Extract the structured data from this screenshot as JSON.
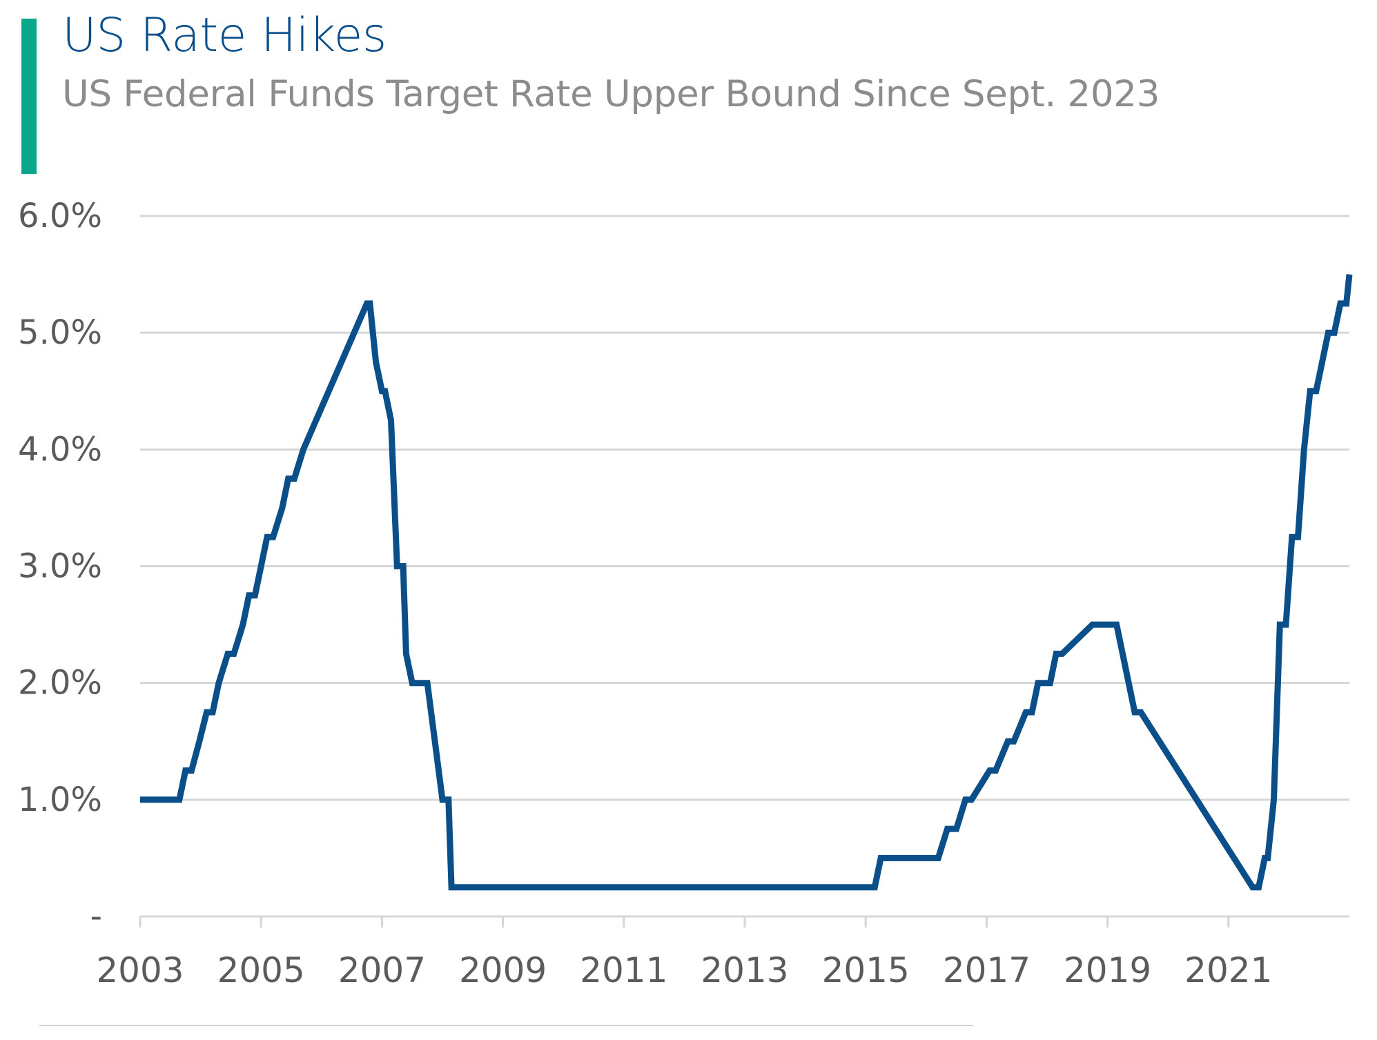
{
  "header": {
    "title": "US Rate Hikes",
    "subtitle": "US Federal Funds Target Rate Upper Bound Since Sept. 2023"
  },
  "colors": {
    "accent": "#0aa88a",
    "title": "#0b4f8a",
    "line": "#0b4f8a",
    "grid": "#d6d6d6",
    "tick_text": "#5b5b5b"
  },
  "chart_data": {
    "type": "line",
    "title": "US Rate Hikes",
    "subtitle": "US Federal Funds Target Rate Upper Bound Since Sept. 2023",
    "xlabel": "",
    "ylabel": "",
    "x_tick_labels": [
      "2003",
      "2005",
      "2007",
      "2009",
      "2011",
      "2013",
      "2015",
      "2017",
      "2019",
      "2021"
    ],
    "y_tick_labels": [
      "-",
      "1.0%",
      "2.0%",
      "3.0%",
      "4.0%",
      "5.0%",
      "6.0%"
    ],
    "xlim": [
      2003.0,
      2023.0
    ],
    "ylim": [
      0,
      6
    ],
    "grid": true,
    "legend": "none",
    "series": [
      {
        "values_unit": "percent",
        "x": [
          2003.0,
          2003.65,
          2003.75,
          2003.85,
          2003.98,
          2004.1,
          2004.2,
          2004.3,
          2004.45,
          2004.55,
          2004.7,
          2004.8,
          2004.9,
          2005.0,
          2005.1,
          2005.2,
          2005.35,
          2005.45,
          2005.55,
          2005.7,
          2006.75,
          2006.8,
          2006.9,
          2007.0,
          2007.05,
          2007.15,
          2007.25,
          2007.35,
          2007.4,
          2007.5,
          2007.55,
          2007.65,
          2007.75,
          2008.0,
          2008.1,
          2008.15,
          2008.25,
          2015.15,
          2015.25,
          2016.1,
          2016.2,
          2016.35,
          2016.5,
          2016.65,
          2016.75,
          2017.05,
          2017.15,
          2017.35,
          2017.45,
          2017.65,
          2017.75,
          2017.85,
          2018.05,
          2018.15,
          2018.25,
          2018.75,
          2018.85,
          2019.15,
          2019.45,
          2019.55,
          2021.4,
          2021.5,
          2021.6,
          2021.65,
          2021.75,
          2021.85,
          2021.95,
          2022.05,
          2022.15,
          2022.25,
          2022.35,
          2022.45,
          2022.55,
          2022.65,
          2022.75,
          2022.85,
          2022.95,
          2023.0
        ],
        "values": [
          1.0,
          1.0,
          1.25,
          1.25,
          1.5,
          1.75,
          1.75,
          2.0,
          2.25,
          2.25,
          2.5,
          2.75,
          2.75,
          3.0,
          3.25,
          3.25,
          3.5,
          3.75,
          3.75,
          4.0,
          5.25,
          5.25,
          4.75,
          4.5,
          4.5,
          4.25,
          3.0,
          3.0,
          2.25,
          2.0,
          2.0,
          2.0,
          2.0,
          1.0,
          1.0,
          0.25,
          0.25,
          0.25,
          0.5,
          0.5,
          0.5,
          0.75,
          0.75,
          1.0,
          1.0,
          1.25,
          1.25,
          1.5,
          1.5,
          1.75,
          1.75,
          2.0,
          2.0,
          2.25,
          2.25,
          2.5,
          2.5,
          2.5,
          1.75,
          1.75,
          0.25,
          0.25,
          0.5,
          0.5,
          1.0,
          2.5,
          2.5,
          3.25,
          3.25,
          4.0,
          4.5,
          4.5,
          4.75,
          5.0,
          5.0,
          5.25,
          5.25,
          5.5
        ]
      }
    ]
  }
}
